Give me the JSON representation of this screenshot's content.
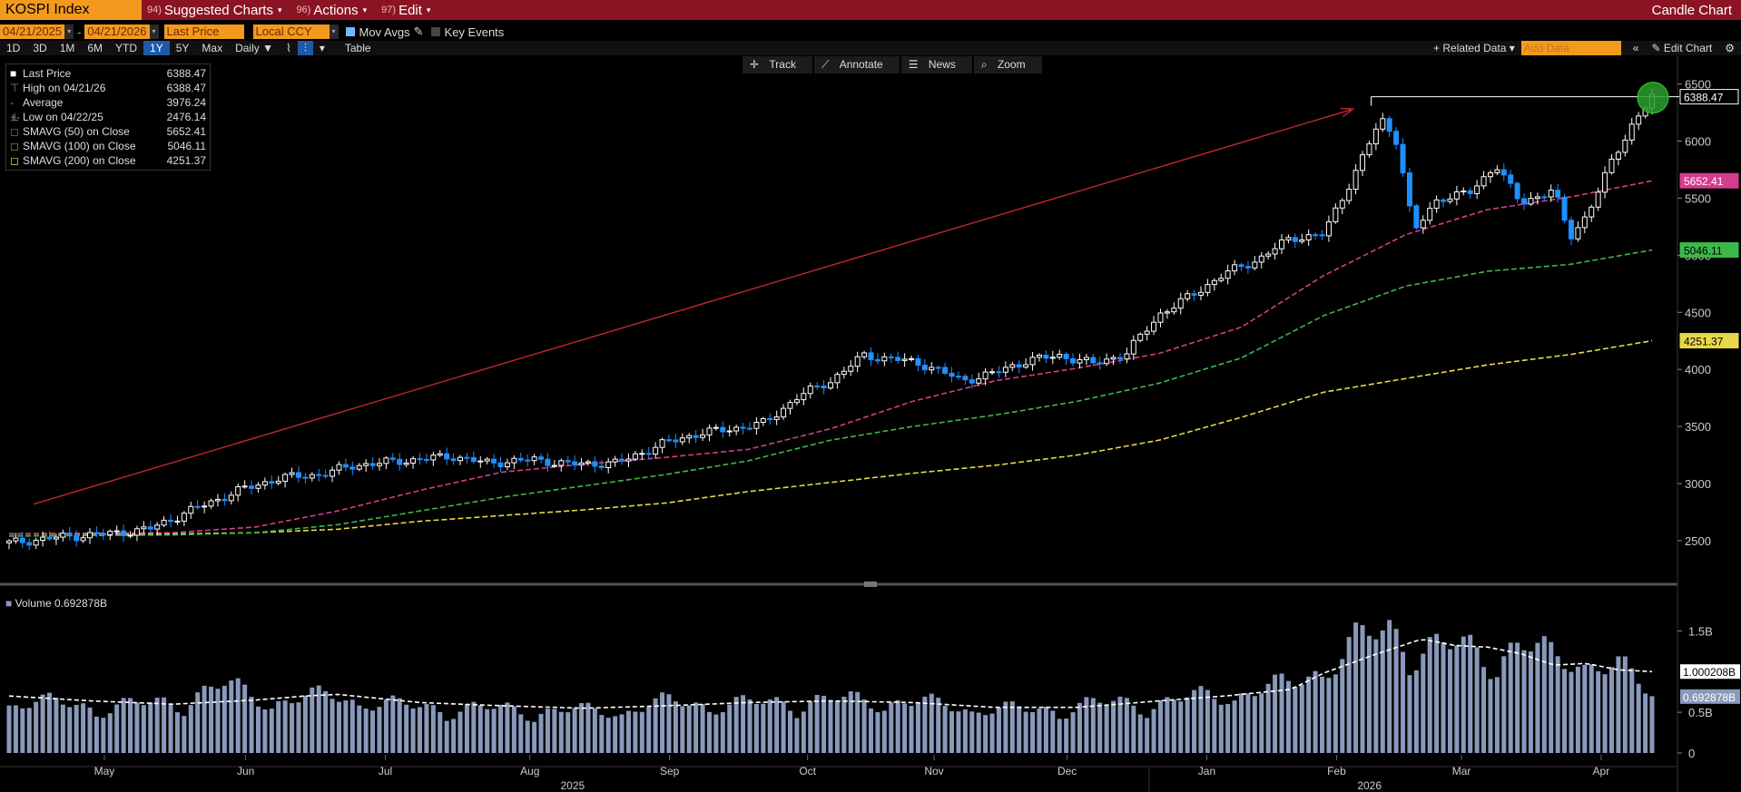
{
  "topbar": {
    "title": "KOSPI Index",
    "menus": [
      {
        "num": "94)",
        "label": "Suggested Charts"
      },
      {
        "num": "96)",
        "label": "Actions"
      },
      {
        "num": "97)",
        "label": "Edit"
      }
    ],
    "right_title": "Candle Chart"
  },
  "controls": {
    "start_date": "04/21/2025",
    "end_date": "04/21/2026",
    "price_field": "Last Price",
    "currency": "Local CCY",
    "mov_avgs": "Mov Avgs",
    "key_events": "Key Events",
    "periods": [
      "1D",
      "3D",
      "1M",
      "6M",
      "YTD",
      "1Y",
      "5Y",
      "Max"
    ],
    "selected_period": "1Y",
    "frequency": "Daily",
    "table": "Table",
    "related_data": "Related Data",
    "add_data_placeholder": "Add Data",
    "edit_chart": "Edit Chart"
  },
  "tools": [
    "Track",
    "Annotate",
    "News",
    "Zoom"
  ],
  "legend": [
    {
      "name": "Last Price",
      "value": "6388.47",
      "color": "#ffffff"
    },
    {
      "name": "High on 04/21/26",
      "value": "6388.47",
      "color": "#888888"
    },
    {
      "name": "Average",
      "value": "3976.24",
      "color": "#888888"
    },
    {
      "name": "Low on 04/22/25",
      "value": "2476.14",
      "color": "#888888"
    },
    {
      "name": "SMAVG (50)  on Close",
      "value": "5652.41",
      "color": "#d63c8e"
    },
    {
      "name": "SMAVG (100)  on Close",
      "value": "5046.11",
      "color": "#3cb84a"
    },
    {
      "name": "SMAVG (200)  on Close",
      "value": "4251.37",
      "color": "#e8d84a"
    }
  ],
  "volume_legend": "Volume  0.692878B",
  "price_tags": [
    {
      "label": "6388.47",
      "value": 6388.47,
      "bg": "#000000",
      "fg": "#ffffff",
      "border": "#ffffff"
    },
    {
      "label": "5652.41",
      "value": 5652.41,
      "bg": "#d63c8e",
      "fg": "#ffffff",
      "border": "#d63c8e"
    },
    {
      "label": "5046.11",
      "value": 5046.11,
      "bg": "#3cb84a",
      "fg": "#000000",
      "border": "#3cb84a"
    },
    {
      "label": "4251.37",
      "value": 4251.37,
      "bg": "#e8d84a",
      "fg": "#000000",
      "border": "#e8d84a"
    }
  ],
  "volume_tags": [
    {
      "label": "1.000208B",
      "value": 1.000208,
      "bg": "#ffffff",
      "fg": "#000000"
    },
    {
      "label": "0.692878B",
      "value": 0.692878,
      "bg": "#8899bb",
      "fg": "#ffffff"
    }
  ],
  "colors": {
    "up": "#ffffff",
    "down": "#1e90ff",
    "sma50": "#d63c8e",
    "sma100": "#3cb84a",
    "sma200": "#e8d84a",
    "volume": "#8899bb",
    "arrow": "#c0282c",
    "highlight": "#2a9d2a"
  },
  "chart_data": {
    "type": "candlestick",
    "ylim": [
      2150,
      6600
    ],
    "yticks": [
      2500,
      3000,
      3500,
      4000,
      4500,
      5000,
      5500,
      6000,
      6500
    ],
    "vol_ylim": [
      0,
      1.95
    ],
    "vol_ticks": [
      {
        "v": 0,
        "label": "0"
      },
      {
        "v": 0.5,
        "label": "0.5B"
      },
      {
        "v": 1.5,
        "label": "1.5B"
      }
    ],
    "month_labels": [
      {
        "label": "May",
        "t": 0.058
      },
      {
        "label": "Jun",
        "t": 0.144
      },
      {
        "label": "Jul",
        "t": 0.229
      },
      {
        "label": "Aug",
        "t": 0.317
      },
      {
        "label": "Sep",
        "t": 0.402
      },
      {
        "label": "Oct",
        "t": 0.486
      },
      {
        "label": "Nov",
        "t": 0.563
      },
      {
        "label": "Dec",
        "t": 0.644
      },
      {
        "label": "Jan",
        "t": 0.729
      },
      {
        "label": "Feb",
        "t": 0.808
      },
      {
        "label": "Mar",
        "t": 0.884
      },
      {
        "label": "Apr",
        "t": 0.969
      }
    ],
    "year_labels": [
      {
        "label": "2025",
        "t": 0.343
      },
      {
        "label": "2026",
        "t": 0.828
      }
    ],
    "close_path": [
      [
        0.0,
        2480
      ],
      [
        0.03,
        2530
      ],
      [
        0.06,
        2560
      ],
      [
        0.085,
        2600
      ],
      [
        0.11,
        2760
      ],
      [
        0.14,
        2940
      ],
      [
        0.165,
        3050
      ],
      [
        0.19,
        3080
      ],
      [
        0.21,
        3160
      ],
      [
        0.24,
        3200
      ],
      [
        0.27,
        3240
      ],
      [
        0.29,
        3180
      ],
      [
        0.32,
        3210
      ],
      [
        0.34,
        3170
      ],
      [
        0.37,
        3180
      ],
      [
        0.4,
        3360
      ],
      [
        0.42,
        3440
      ],
      [
        0.44,
        3480
      ],
      [
        0.46,
        3530
      ],
      [
        0.48,
        3760
      ],
      [
        0.5,
        3900
      ],
      [
        0.52,
        4120
      ],
      [
        0.54,
        4090
      ],
      [
        0.56,
        4030
      ],
      [
        0.58,
        3900
      ],
      [
        0.6,
        3970
      ],
      [
        0.62,
        4080
      ],
      [
        0.64,
        4120
      ],
      [
        0.66,
        4050
      ],
      [
        0.68,
        4140
      ],
      [
        0.7,
        4480
      ],
      [
        0.72,
        4650
      ],
      [
        0.74,
        4840
      ],
      [
        0.76,
        4960
      ],
      [
        0.78,
        5150
      ],
      [
        0.8,
        5180
      ],
      [
        0.815,
        5600
      ],
      [
        0.835,
        6190
      ],
      [
        0.845,
        6000
      ],
      [
        0.855,
        5200
      ],
      [
        0.87,
        5500
      ],
      [
        0.89,
        5550
      ],
      [
        0.905,
        5800
      ],
      [
        0.92,
        5450
      ],
      [
        0.94,
        5580
      ],
      [
        0.95,
        5150
      ],
      [
        0.96,
        5350
      ],
      [
        0.975,
        5800
      ],
      [
        0.988,
        6150
      ],
      [
        1.0,
        6388
      ]
    ],
    "sma50_path": [
      [
        0.0,
        2560
      ],
      [
        0.1,
        2570
      ],
      [
        0.15,
        2620
      ],
      [
        0.2,
        2760
      ],
      [
        0.25,
        2940
      ],
      [
        0.3,
        3100
      ],
      [
        0.35,
        3170
      ],
      [
        0.4,
        3230
      ],
      [
        0.45,
        3300
      ],
      [
        0.5,
        3480
      ],
      [
        0.55,
        3720
      ],
      [
        0.6,
        3900
      ],
      [
        0.65,
        4010
      ],
      [
        0.7,
        4140
      ],
      [
        0.75,
        4370
      ],
      [
        0.8,
        4820
      ],
      [
        0.85,
        5180
      ],
      [
        0.9,
        5400
      ],
      [
        0.95,
        5510
      ],
      [
        1.0,
        5652
      ]
    ],
    "sma100_path": [
      [
        0.0,
        2540
      ],
      [
        0.1,
        2550
      ],
      [
        0.15,
        2570
      ],
      [
        0.2,
        2640
      ],
      [
        0.25,
        2760
      ],
      [
        0.3,
        2880
      ],
      [
        0.35,
        2980
      ],
      [
        0.4,
        3080
      ],
      [
        0.45,
        3200
      ],
      [
        0.5,
        3380
      ],
      [
        0.55,
        3500
      ],
      [
        0.6,
        3600
      ],
      [
        0.65,
        3720
      ],
      [
        0.7,
        3880
      ],
      [
        0.75,
        4100
      ],
      [
        0.8,
        4470
      ],
      [
        0.85,
        4730
      ],
      [
        0.9,
        4860
      ],
      [
        0.95,
        4920
      ],
      [
        1.0,
        5046
      ]
    ],
    "sma200_path": [
      [
        0.0,
        2560
      ],
      [
        0.1,
        2560
      ],
      [
        0.15,
        2570
      ],
      [
        0.2,
        2600
      ],
      [
        0.25,
        2670
      ],
      [
        0.3,
        2720
      ],
      [
        0.35,
        2770
      ],
      [
        0.4,
        2830
      ],
      [
        0.45,
        2930
      ],
      [
        0.5,
        3010
      ],
      [
        0.55,
        3090
      ],
      [
        0.6,
        3160
      ],
      [
        0.65,
        3250
      ],
      [
        0.7,
        3380
      ],
      [
        0.75,
        3580
      ],
      [
        0.8,
        3800
      ],
      [
        0.85,
        3920
      ],
      [
        0.9,
        4040
      ],
      [
        0.95,
        4130
      ],
      [
        1.0,
        4251
      ]
    ],
    "volume_path": [
      [
        0.0,
        0.62
      ],
      [
        0.06,
        0.55
      ],
      [
        0.1,
        0.6
      ],
      [
        0.13,
        0.8
      ],
      [
        0.16,
        0.62
      ],
      [
        0.2,
        0.68
      ],
      [
        0.24,
        0.55
      ],
      [
        0.28,
        0.53
      ],
      [
        0.33,
        0.5
      ],
      [
        0.37,
        0.5
      ],
      [
        0.4,
        0.6
      ],
      [
        0.45,
        0.58
      ],
      [
        0.49,
        0.62
      ],
      [
        0.53,
        0.63
      ],
      [
        0.58,
        0.55
      ],
      [
        0.62,
        0.5
      ],
      [
        0.66,
        0.58
      ],
      [
        0.7,
        0.6
      ],
      [
        0.74,
        0.7
      ],
      [
        0.78,
        0.8
      ],
      [
        0.8,
        1.05
      ],
      [
        0.82,
        1.3
      ],
      [
        0.84,
        1.45
      ],
      [
        0.86,
        1.25
      ],
      [
        0.88,
        1.25
      ],
      [
        0.9,
        1.15
      ],
      [
        0.92,
        1.3
      ],
      [
        0.94,
        1.1
      ],
      [
        0.96,
        1.15
      ],
      [
        0.98,
        1.0
      ],
      [
        1.0,
        0.69
      ]
    ],
    "volume_ma_path": [
      [
        0.0,
        0.7
      ],
      [
        0.05,
        0.64
      ],
      [
        0.1,
        0.6
      ],
      [
        0.15,
        0.65
      ],
      [
        0.18,
        0.7
      ],
      [
        0.2,
        0.72
      ],
      [
        0.25,
        0.62
      ],
      [
        0.3,
        0.58
      ],
      [
        0.35,
        0.55
      ],
      [
        0.4,
        0.58
      ],
      [
        0.45,
        0.62
      ],
      [
        0.5,
        0.64
      ],
      [
        0.55,
        0.62
      ],
      [
        0.6,
        0.56
      ],
      [
        0.65,
        0.56
      ],
      [
        0.7,
        0.64
      ],
      [
        0.74,
        0.7
      ],
      [
        0.78,
        0.78
      ],
      [
        0.8,
        0.98
      ],
      [
        0.83,
        1.2
      ],
      [
        0.86,
        1.4
      ],
      [
        0.88,
        1.32
      ],
      [
        0.9,
        1.3
      ],
      [
        0.92,
        1.22
      ],
      [
        0.94,
        1.08
      ],
      [
        0.96,
        1.1
      ],
      [
        0.98,
        1.02
      ],
      [
        1.0,
        1.0
      ]
    ],
    "trend_arrow": {
      "from": [
        0.015,
        2820
      ],
      "to": [
        0.818,
        6280
      ]
    },
    "high_line": 6388.47
  }
}
